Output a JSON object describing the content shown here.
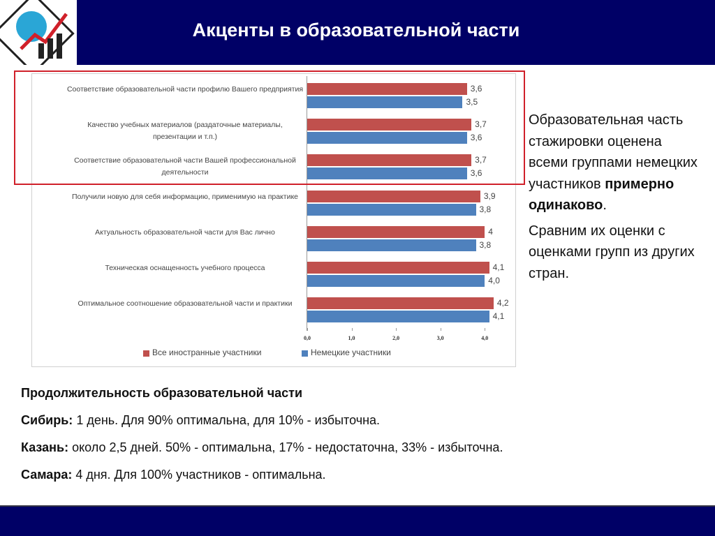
{
  "header": {
    "title": "Акценты в образовательной части"
  },
  "chart_data": {
    "type": "bar",
    "orientation": "horizontal",
    "categories": [
      "Соответствие образовательной части профилю Вашего предприятия",
      "Качество учебных материалов (раздаточные материалы, презентации и т.п.)",
      "Соответствие образовательной части Вашей профессиональной деятельности",
      "Получили новую для себя информацию, применимую на практике",
      "Актуальность образовательной части для Вас лично",
      "Техническая оснащенность учебного процесса",
      "Оптимальное соотношение образовательной части и практики"
    ],
    "series": [
      {
        "name": "Все иностранные участники",
        "color": "#c0504d",
        "values": [
          3.6,
          3.7,
          3.7,
          3.9,
          4,
          4.1,
          4.2
        ],
        "value_labels": [
          "3,6",
          "3,7",
          "3,7",
          "3,9",
          "4",
          "4,1",
          "4,2"
        ]
      },
      {
        "name": "Немецкие участники",
        "color": "#4f81bd",
        "values": [
          3.5,
          3.6,
          3.6,
          3.8,
          3.8,
          4.0,
          4.1
        ],
        "value_labels": [
          "3,5",
          "3,6",
          "3,6",
          "3,8",
          "3,8",
          "4,0",
          "4,1"
        ]
      }
    ],
    "xlim": [
      0,
      4.5
    ],
    "xticks": [
      {
        "value": 0,
        "label": "0,0"
      },
      {
        "value": 1,
        "label": "1,0"
      },
      {
        "value": 2,
        "label": "2,0"
      },
      {
        "value": 3,
        "label": "3,0"
      },
      {
        "value": 4,
        "label": "4,0"
      }
    ],
    "legend": "bottom"
  },
  "side_text": {
    "p1_start": "Образовательная часть стажировки оценена всеми группами немецких участников ",
    "p1_bold": "примерно одинаково",
    "p1_end": ".",
    "p2": "Сравним их оценки с оценками групп из других стран."
  },
  "bottom": {
    "heading": "Продолжительность образовательной части",
    "lines": [
      {
        "label": "Сибирь:",
        "text": " 1 день. Для 90% оптимальна, для 10% - избыточна."
      },
      {
        "label": "Казань:",
        "text": " около 2,5 дней.  50% - оптимальна, 17% - недостаточна, 33% - избыточна."
      },
      {
        "label": "Самара:",
        "text": " 4 дня.  Для 100% участников - оптимальна."
      }
    ]
  }
}
